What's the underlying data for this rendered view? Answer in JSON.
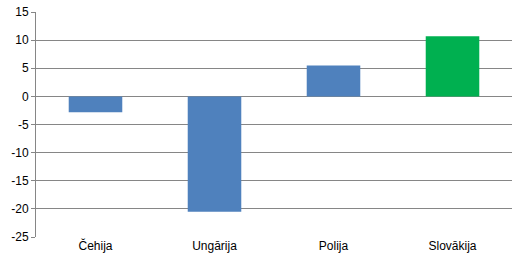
{
  "chart_data": {
    "type": "bar",
    "categories": [
      "Čehija",
      "Ungārija",
      "Polija",
      "Slovākija"
    ],
    "values": [
      -2.8,
      -20.5,
      5.5,
      10.7
    ],
    "colors": [
      "#4f81bd",
      "#4f81bd",
      "#4f81bd",
      "#00b050"
    ],
    "ylim": [
      -25,
      15
    ],
    "yticks": [
      -25,
      -20,
      -15,
      -10,
      -5,
      0,
      5,
      10,
      15
    ],
    "grid": true
  }
}
